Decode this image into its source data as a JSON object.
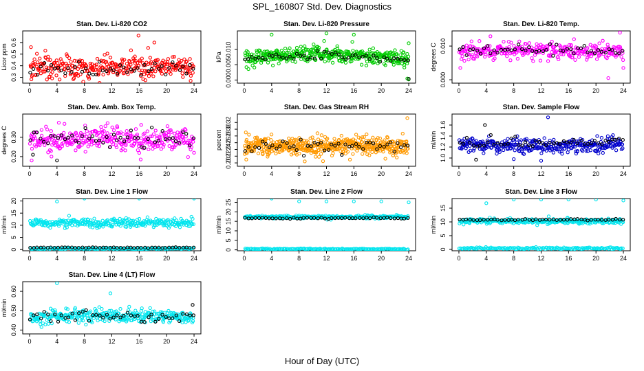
{
  "figure": {
    "title": "SPL_160807  Std. Dev. Diagnostics",
    "xlabel": "Hour of Day (UTC)"
  },
  "chart_data": [
    {
      "id": "co2",
      "type": "scatter",
      "title": "Stan. Dev. Li-820 CO2",
      "ylabel": "Licor ppm",
      "xlim": [
        -1,
        25
      ],
      "ylim": [
        0.25,
        0.7
      ],
      "xticks": [
        "0",
        "4",
        "8",
        "12",
        "16",
        "20",
        "24"
      ],
      "xtick_values": [
        0,
        4,
        8,
        12,
        16,
        20,
        24
      ],
      "yticks": [
        "0.3",
        "0.4",
        "0.5",
        "0.6"
      ],
      "ytick_values": [
        0.3,
        0.4,
        0.5,
        0.6
      ],
      "series": [
        {
          "color": "#ff0000",
          "n": 320,
          "base": 0.39,
          "spread": 0.09,
          "trend": 0.0,
          "outliers": [
            [
              15.9,
              0.66
            ],
            [
              18.2,
              0.6
            ],
            [
              23.5,
              0.27
            ],
            [
              2.3,
              0.53
            ],
            [
              0.2,
              0.56
            ]
          ]
        },
        {
          "color": "#000000",
          "n": 48,
          "base": 0.37,
          "spread": 0.05,
          "trend": 0.0,
          "outliers": []
        }
      ]
    },
    {
      "id": "pressure",
      "type": "scatter",
      "title": "Stan. Dev. Li-820 Pressure",
      "ylabel": "kPa",
      "xlim": [
        -1,
        25
      ],
      "ylim": [
        -0.001,
        0.016
      ],
      "xticks": [
        "0",
        "4",
        "8",
        "12",
        "16",
        "20",
        "24"
      ],
      "xtick_values": [
        0,
        4,
        8,
        12,
        16,
        20,
        24
      ],
      "yticks": [
        "0.000",
        "0.005",
        "0.010"
      ],
      "ytick_values": [
        0,
        0.005,
        0.01
      ],
      "series": [
        {
          "color": "#00cc00",
          "n": 420,
          "base": 0.0065,
          "spread": 0.0022,
          "trend": 0.002,
          "outliers": [
            [
              4.0,
              0.0148
            ],
            [
              12.0,
              0.0152
            ],
            [
              16.0,
              0.0148
            ],
            [
              24.0,
              0.012
            ],
            [
              23.8,
              0.0005
            ],
            [
              24.0,
              0.0002
            ]
          ]
        },
        {
          "color": "#000000",
          "n": 48,
          "base": 0.0062,
          "spread": 0.0012,
          "trend": 0.0018,
          "outliers": [
            [
              24.0,
              0.0004
            ]
          ]
        }
      ]
    },
    {
      "id": "temp",
      "type": "scatter",
      "title": "Stan. Dev. Li-820 Temp.",
      "ylabel": "degrees C",
      "xlim": [
        -1,
        25
      ],
      "ylim": [
        -0.001,
        0.0145
      ],
      "xticks": [
        "0",
        "4",
        "8",
        "12",
        "16",
        "20",
        "24"
      ],
      "xtick_values": [
        0,
        4,
        8,
        12,
        16,
        20,
        24
      ],
      "yticks": [
        "0.000",
        "0.010"
      ],
      "ytick_values": [
        0,
        0.01
      ],
      "series": [
        {
          "color": "#ff00ff",
          "n": 320,
          "base": 0.0082,
          "spread": 0.0021,
          "trend": 0.0005,
          "outliers": [
            [
              23.5,
              0.014
            ],
            [
              21.8,
              0.0005
            ],
            [
              0.2,
              0.0035
            ],
            [
              24.0,
              0.0035
            ]
          ]
        },
        {
          "color": "#000000",
          "n": 48,
          "base": 0.0085,
          "spread": 0.0014,
          "trend": 0.0005,
          "outliers": []
        }
      ]
    },
    {
      "id": "box",
      "type": "scatter",
      "title": "Stan. Dev. Amb. Box Temp.",
      "ylabel": "degrees C",
      "xlim": [
        -1,
        25
      ],
      "ylim": [
        0.15,
        0.42
      ],
      "xticks": [
        "0",
        "4",
        "8",
        "12",
        "16",
        "20",
        "24"
      ],
      "xtick_values": [
        0,
        4,
        8,
        12,
        16,
        20,
        24
      ],
      "yticks": [
        "0.20",
        "0.30"
      ],
      "ytick_values": [
        0.2,
        0.3
      ],
      "series": [
        {
          "color": "#ff00ff",
          "n": 340,
          "base": 0.29,
          "spread": 0.055,
          "trend": 0.0,
          "outliers": [
            [
              0.3,
              0.18
            ],
            [
              3.2,
              0.2
            ],
            [
              24.0,
              0.22
            ]
          ]
        },
        {
          "color": "#000000",
          "n": 48,
          "base": 0.29,
          "spread": 0.04,
          "trend": 0.0,
          "outliers": [
            [
              4.0,
              0.18
            ],
            [
              0.5,
              0.21
            ]
          ]
        }
      ]
    },
    {
      "id": "rh",
      "type": "scatter",
      "title": "Stan. Dev. Gas Stream RH",
      "ylabel": "percent",
      "xlim": [
        -1,
        25
      ],
      "ylim": [
        0.19,
        0.345
      ],
      "xticks": [
        "0",
        "4",
        "8",
        "12",
        "16",
        "20",
        "24"
      ],
      "xtick_values": [
        0,
        4,
        8,
        12,
        16,
        20,
        24
      ],
      "yticks": [
        "0.20",
        "0.22",
        "0.24",
        "0.26",
        "0.28",
        "0.30",
        "0.32"
      ],
      "ytick_values": [
        0.2,
        0.22,
        0.24,
        0.26,
        0.28,
        0.3,
        0.32
      ],
      "series": [
        {
          "color": "#ff9900",
          "n": 520,
          "base": 0.25,
          "spread": 0.025,
          "trend": 0.0,
          "outliers": [
            [
              23.8,
              0.333
            ],
            [
              0.3,
              0.21
            ],
            [
              11.5,
              0.205
            ]
          ]
        },
        {
          "color": "#000000",
          "n": 48,
          "base": 0.248,
          "spread": 0.016,
          "trend": 0.0,
          "outliers": []
        }
      ]
    },
    {
      "id": "sample",
      "type": "scatter",
      "title": "Stan. Dev. Sample Flow",
      "ylabel": "ml/min",
      "xlim": [
        -1,
        25
      ],
      "ylim": [
        0.85,
        1.8
      ],
      "xticks": [
        "0",
        "4",
        "8",
        "12",
        "16",
        "20",
        "24"
      ],
      "xtick_values": [
        0,
        4,
        8,
        12,
        16,
        20,
        24
      ],
      "yticks": [
        "1.0",
        "1.2",
        "1.4",
        "1.6"
      ],
      "ytick_values": [
        1.0,
        1.2,
        1.4,
        1.6
      ],
      "series": [
        {
          "color": "#0000cc",
          "n": 360,
          "base": 1.26,
          "spread": 0.12,
          "trend": -0.04,
          "outliers": [
            [
              13.0,
              1.74
            ],
            [
              12.0,
              0.95
            ],
            [
              8.0,
              0.98
            ]
          ]
        },
        {
          "color": "#000000",
          "n": 48,
          "base": 1.3,
          "spread": 0.09,
          "trend": -0.03,
          "outliers": [
            [
              3.8,
              1.6
            ],
            [
              2.5,
              0.97
            ]
          ]
        }
      ]
    },
    {
      "id": "line1",
      "type": "scatter",
      "title": "Stan. Dev. Line 1 Flow",
      "ylabel": "ml/min",
      "xlim": [
        -1,
        25
      ],
      "ylim": [
        -0.5,
        21
      ],
      "xticks": [
        "0",
        "4",
        "8",
        "12",
        "16",
        "20",
        "24"
      ],
      "xtick_values": [
        0,
        4,
        8,
        12,
        16,
        20,
        24
      ],
      "yticks": [
        "0",
        "5",
        "10",
        "15",
        "20"
      ],
      "ytick_values": [
        0,
        5,
        10,
        15,
        20
      ],
      "series": [
        {
          "color": "#00e5ee",
          "n": 300,
          "base": 11.0,
          "spread": 1.5,
          "trend": 0.0,
          "outliers": [
            [
              4.0,
              19.8
            ],
            [
              8.0,
              21.0
            ],
            [
              16.0,
              21.0
            ],
            [
              24.0,
              21.0
            ]
          ]
        },
        {
          "color": "#00e5ee",
          "n": 150,
          "base": 0.4,
          "spread": 0.3,
          "trend": 0.0,
          "outliers": []
        },
        {
          "color": "#000000",
          "n": 48,
          "base": 0.8,
          "spread": 0.15,
          "trend": 0.0,
          "outliers": []
        }
      ]
    },
    {
      "id": "line2",
      "type": "scatter",
      "title": "Stan. Dev. Line 2 Flow",
      "ylabel": "ml/min",
      "xlim": [
        -1,
        25
      ],
      "ylim": [
        -0.5,
        27
      ],
      "xticks": [
        "0",
        "4",
        "8",
        "12",
        "16",
        "20",
        "24"
      ],
      "xtick_values": [
        0,
        4,
        8,
        12,
        16,
        20,
        24
      ],
      "yticks": [
        "0",
        "5",
        "10",
        "15",
        "20",
        "25"
      ],
      "ytick_values": [
        0,
        5,
        10,
        15,
        20,
        25
      ],
      "series": [
        {
          "color": "#00e5ee",
          "n": 300,
          "base": 17.3,
          "spread": 0.7,
          "trend": 0.0,
          "outliers": [
            [
              4.0,
              27.0
            ],
            [
              8.0,
              25.5
            ],
            [
              12.0,
              25.5
            ],
            [
              16.0,
              25.5
            ],
            [
              20.0,
              25.5
            ],
            [
              24.0,
              25.0
            ]
          ]
        },
        {
          "color": "#00e5ee",
          "n": 150,
          "base": 0.4,
          "spread": 0.3,
          "trend": 0.0,
          "outliers": []
        },
        {
          "color": "#000000",
          "n": 48,
          "base": 16.7,
          "spread": 0.3,
          "trend": 0.0,
          "outliers": []
        }
      ]
    },
    {
      "id": "line3",
      "type": "scatter",
      "title": "Stan. Dev. Line 3 Flow",
      "ylabel": "ml/min",
      "xlim": [
        -1,
        25
      ],
      "ylim": [
        -0.5,
        18.5
      ],
      "xticks": [
        "0",
        "4",
        "8",
        "12",
        "16",
        "20",
        "24"
      ],
      "xtick_values": [
        0,
        4,
        8,
        12,
        16,
        20,
        24
      ],
      "yticks": [
        "0",
        "5",
        "10",
        "15"
      ],
      "ytick_values": [
        0,
        5,
        10,
        15
      ],
      "series": [
        {
          "color": "#00e5ee",
          "n": 300,
          "base": 10.3,
          "spread": 0.8,
          "trend": 0.0,
          "outliers": [
            [
              4.0,
              16.8
            ],
            [
              8.0,
              18.2
            ],
            [
              12.0,
              18.2
            ],
            [
              16.0,
              18.2
            ],
            [
              20.0,
              18.2
            ],
            [
              24.0,
              17.8
            ]
          ]
        },
        {
          "color": "#00e5ee",
          "n": 150,
          "base": 0.4,
          "spread": 0.3,
          "trend": 0.0,
          "outliers": []
        },
        {
          "color": "#000000",
          "n": 48,
          "base": 10.8,
          "spread": 0.2,
          "trend": 0.0,
          "outliers": []
        }
      ]
    },
    {
      "id": "line4",
      "type": "scatter",
      "title": "Stan. Dev. Line 4 (LT) Flow",
      "ylabel": "ml/min",
      "xlim": [
        -1,
        25
      ],
      "ylim": [
        0.38,
        0.65
      ],
      "xticks": [
        "0",
        "4",
        "8",
        "12",
        "16",
        "20",
        "24"
      ],
      "xtick_values": [
        0,
        4,
        8,
        12,
        16,
        20,
        24
      ],
      "yticks": [
        "0.40",
        "0.50",
        "0.60"
      ],
      "ytick_values": [
        0.4,
        0.5,
        0.6
      ],
      "series": [
        {
          "color": "#00e5ee",
          "n": 340,
          "base": 0.465,
          "spread": 0.03,
          "trend": 0.01,
          "outliers": [
            [
              4.0,
              0.642
            ],
            [
              11.8,
              0.59
            ]
          ]
        },
        {
          "color": "#000000",
          "n": 48,
          "base": 0.465,
          "spread": 0.025,
          "trend": 0.01,
          "outliers": [
            [
              23.8,
              0.53
            ]
          ]
        }
      ]
    }
  ]
}
